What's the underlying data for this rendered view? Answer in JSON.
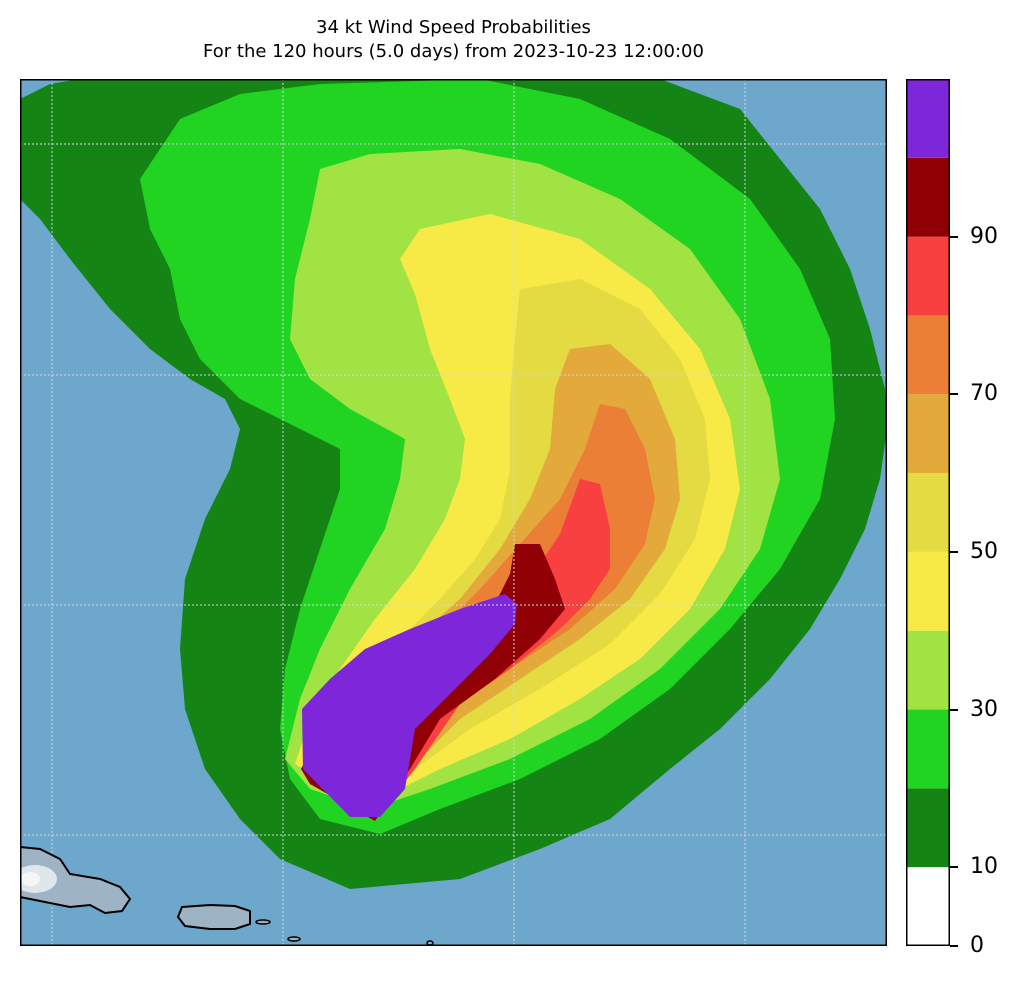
{
  "title": {
    "line1": "34 kt Wind Speed Probabilities",
    "line2": "For the 120 hours (5.0 days) from 2023-10-23 12:00:00"
  },
  "colors": {
    "ocean": "#6da7cc",
    "land": "#9eb3c3",
    "grid": "#d0d8df"
  },
  "colorbar": {
    "levels": [
      {
        "from": 0,
        "to": 10,
        "color": "#ffffff"
      },
      {
        "from": 10,
        "to": 20,
        "color": "#148414"
      },
      {
        "from": 20,
        "to": 30,
        "color": "#21d421"
      },
      {
        "from": 30,
        "to": 40,
        "color": "#a2e344"
      },
      {
        "from": 40,
        "to": 50,
        "color": "#f8ea46"
      },
      {
        "from": 50,
        "to": 60,
        "color": "#e4da42"
      },
      {
        "from": 60,
        "to": 70,
        "color": "#e3aa3b"
      },
      {
        "from": 70,
        "to": 80,
        "color": "#eb7f35"
      },
      {
        "from": 80,
        "to": 90,
        "color": "#f84040"
      },
      {
        "from": 90,
        "to": 100,
        "color": "#910005"
      },
      {
        "from": 100,
        "to": 110,
        "color": "#7e26d9"
      }
    ],
    "ticks": [
      "0",
      "10",
      "30",
      "50",
      "70",
      "90"
    ]
  }
}
